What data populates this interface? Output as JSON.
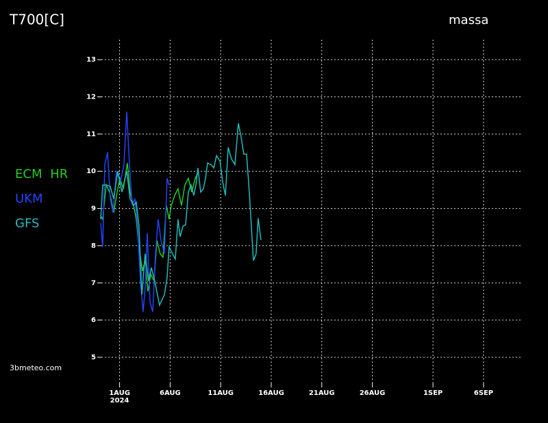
{
  "chart_data": {
    "type": "line",
    "title": "T700[C]",
    "location": "massa",
    "source": "3bmeteo.com",
    "xlim": [
      -1.8,
      39.8
    ],
    "ylim": [
      4.3,
      13.5
    ],
    "xticks": [
      {
        "value": 0,
        "label": "1AUG"
      },
      {
        "value": 5,
        "label": "6AUG"
      },
      {
        "value": 10,
        "label": "11AUG"
      },
      {
        "value": 15,
        "label": "16AUG"
      },
      {
        "value": 20,
        "label": "21AUG"
      },
      {
        "value": 25,
        "label": "26AUG"
      },
      {
        "value": 31,
        "label": "1SEP"
      },
      {
        "value": 36,
        "label": "6SEP"
      }
    ],
    "x_sublabel": "2024",
    "yticks": [
      5,
      6,
      7,
      8,
      9,
      10,
      11,
      12,
      13
    ],
    "grid": true,
    "series": [
      {
        "name": "ECM HR",
        "color": "#22cc22",
        "x": [
          -1.87,
          -1.67,
          -1.33,
          -0.99,
          -0.58,
          -0.24,
          0.03,
          0.37,
          0.77,
          1.04,
          1.38,
          1.65,
          1.92,
          2.26,
          2.53,
          2.8,
          3.08,
          3.41,
          3.69,
          4.02,
          4.29,
          4.63,
          4.9,
          5.11,
          5.45,
          5.78,
          6.12,
          6.46,
          6.8,
          7.14,
          7.48,
          7.82
        ],
        "values": [
          8.8,
          8.71,
          9.63,
          9.44,
          8.89,
          9.44,
          9.81,
          9.53,
          10.22,
          9.44,
          9.08,
          8.71,
          7.97,
          7.32,
          7.6,
          6.77,
          7.23,
          7.05,
          8.15,
          7.78,
          7.69,
          9.08,
          8.71,
          9.08,
          9.35,
          9.53,
          9.08,
          9.63,
          9.81,
          9.44,
          9.81,
          10.0
        ]
      },
      {
        "name": "UKM",
        "color": "#2244ff",
        "x": [
          -1.87,
          -1.67,
          -1.46,
          -1.19,
          -0.92,
          -0.65,
          -0.31,
          0.09,
          0.43,
          0.71,
          0.98,
          1.25,
          1.52,
          1.79,
          2.06,
          2.33,
          2.53,
          2.74,
          3.01,
          3.28,
          3.55,
          3.82,
          4.09,
          4.43,
          4.7,
          4.9
        ],
        "values": [
          8.61,
          7.97,
          10.18,
          10.51,
          9.26,
          8.89,
          10.0,
          9.72,
          10.18,
          11.6,
          10.18,
          9.08,
          9.26,
          8.52,
          7.05,
          6.22,
          6.86,
          8.34,
          6.49,
          6.22,
          7.78,
          8.71,
          8.15,
          7.78,
          9.81,
          9.63
        ]
      },
      {
        "name": "GFS",
        "color": "#22bbbb",
        "x": [
          -1.87,
          -1.67,
          -1.26,
          -0.92,
          -0.58,
          -0.18,
          0.23,
          0.71,
          1.04,
          1.38,
          1.65,
          1.92,
          2.2,
          2.53,
          2.87,
          3.14,
          3.48,
          3.95,
          4.43,
          4.7,
          4.9,
          5.24,
          5.51,
          5.78,
          5.99,
          6.26,
          6.53,
          6.8,
          7.07,
          7.34,
          7.55,
          7.75,
          8.02,
          8.29,
          8.5,
          8.7,
          9.04,
          9.32,
          9.59,
          9.93,
          10.19,
          10.47,
          10.74,
          11.07,
          11.41,
          11.75,
          12.02,
          12.29,
          12.56,
          12.83,
          13.24,
          13.5,
          13.71,
          13.98
        ],
        "values": [
          8.71,
          9.63,
          9.63,
          9.59,
          9.26,
          10.0,
          9.44,
          10.0,
          9.26,
          9.08,
          9.17,
          8.52,
          6.68,
          7.78,
          7.05,
          7.41,
          7.05,
          6.4,
          6.68,
          7.14,
          7.97,
          7.78,
          7.64,
          8.71,
          8.24,
          8.52,
          8.56,
          9.44,
          9.63,
          9.35,
          9.63,
          10.09,
          9.44,
          9.53,
          9.81,
          10.22,
          10.18,
          10.09,
          10.42,
          10.27,
          9.72,
          9.35,
          10.64,
          10.33,
          10.18,
          11.29,
          10.92,
          10.46,
          10.46,
          9.44,
          7.6,
          7.78,
          8.74,
          8.15
        ]
      }
    ]
  }
}
